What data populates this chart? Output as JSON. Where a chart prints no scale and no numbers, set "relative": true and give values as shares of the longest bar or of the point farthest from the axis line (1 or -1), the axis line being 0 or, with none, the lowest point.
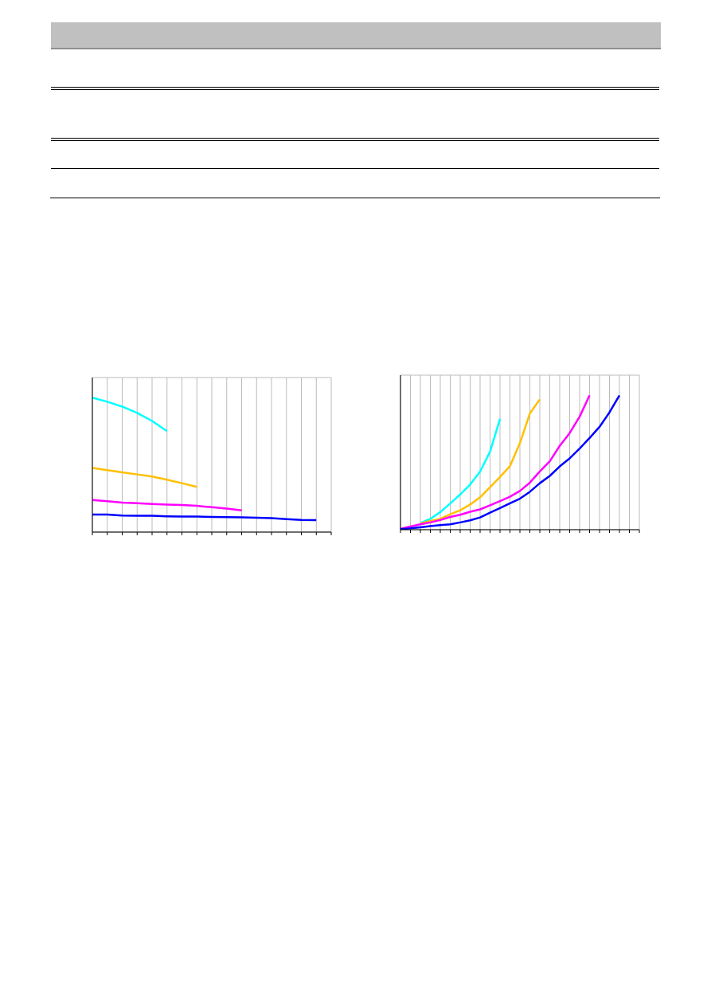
{
  "chart_data": [
    {
      "type": "line",
      "relative": true,
      "grid": true,
      "categories": [
        null,
        null,
        null,
        null,
        null,
        null,
        null,
        null,
        null,
        null,
        null,
        null,
        null,
        null,
        null,
        null,
        null
      ],
      "series": [
        {
          "color": "#00ffff",
          "values": [
            1,
            0.97,
            0.934,
            0.887,
            0.827,
            0.751,
            null,
            null,
            null,
            null,
            null,
            null,
            null,
            null,
            null,
            null,
            null
          ]
        },
        {
          "color": "#ffc000",
          "values": [
            0.477,
            0.461,
            0.445,
            0.429,
            0.414,
            0.39,
            0.364,
            0.336,
            null,
            null,
            null,
            null,
            null,
            null,
            null,
            null,
            null
          ]
        },
        {
          "color": "#ff00ff",
          "values": [
            0.239,
            0.229,
            0.219,
            0.215,
            0.209,
            0.205,
            0.201,
            0.195,
            0.185,
            0.175,
            0.161,
            null,
            null,
            null,
            null,
            null,
            null
          ]
        },
        {
          "color": "#0000ff",
          "values": [
            0.131,
            0.131,
            0.123,
            0.121,
            0.121,
            0.117,
            0.115,
            0.115,
            0.113,
            0.111,
            0.109,
            0.107,
            0.103,
            0.097,
            0.091,
            0.089,
            null
          ]
        }
      ]
    },
    {
      "type": "line",
      "relative": true,
      "grid": true,
      "categories": [
        null,
        null,
        null,
        null,
        null,
        null,
        null,
        null,
        null,
        null,
        null,
        null,
        null,
        null,
        null,
        null,
        null,
        null,
        null,
        null,
        null,
        null,
        null,
        null,
        null
      ],
      "series": [
        {
          "color": "#00ffff",
          "values": [
            null,
            null,
            0.05,
            0.08,
            0.131,
            0.195,
            0.262,
            0.336,
            0.433,
            0.58,
            0.825,
            null,
            null,
            null,
            null,
            null,
            null,
            null,
            null,
            null,
            null,
            null,
            null,
            null,
            null
          ]
        },
        {
          "color": "#ffc000",
          "values": [
            null,
            null,
            0.046,
            0.066,
            0.08,
            0.115,
            0.145,
            0.187,
            0.241,
            0.316,
            0.392,
            0.473,
            0.644,
            0.865,
            0.97,
            null,
            null,
            null,
            null,
            null,
            null,
            null,
            null,
            null,
            null
          ]
        },
        {
          "color": "#ff00ff",
          "values": [
            0.006,
            0.024,
            0.04,
            0.054,
            0.072,
            0.095,
            0.111,
            0.133,
            0.151,
            0.181,
            0.213,
            0.245,
            0.288,
            0.35,
            0.433,
            0.509,
            0.624,
            0.719,
            0.841,
            1,
            null,
            null,
            null,
            null,
            null
          ]
        },
        {
          "color": "#0000ff",
          "values": [
            0.004,
            0.01,
            0.018,
            0.026,
            0.034,
            0.04,
            0.054,
            0.07,
            0.091,
            0.127,
            0.161,
            0.197,
            0.231,
            0.282,
            0.346,
            0.4,
            0.471,
            0.531,
            0.604,
            0.682,
            0.765,
            0.873,
            1,
            null,
            null
          ]
        }
      ]
    }
  ]
}
